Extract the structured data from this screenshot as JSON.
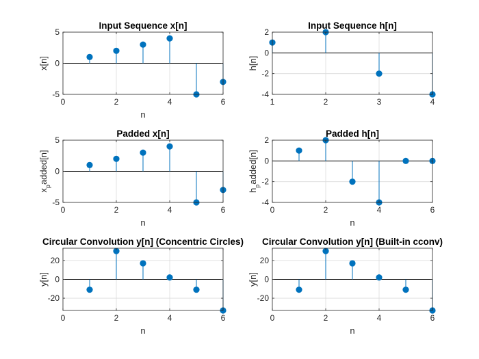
{
  "chart_data": [
    {
      "type": "stem",
      "title": "Input Sequence x[n]",
      "xlabel": "n",
      "ylabel": "x[n]",
      "xlim": [
        0,
        6
      ],
      "ylim": [
        -5,
        5
      ],
      "xticks": [
        0,
        2,
        4,
        6
      ],
      "yticks": [
        -5,
        0,
        5
      ],
      "x": [
        1,
        2,
        3,
        4,
        5,
        6
      ],
      "y": [
        1,
        2,
        3,
        4,
        -5,
        -3
      ],
      "grid": true,
      "color": "#0072BD"
    },
    {
      "type": "stem",
      "title": "Input Sequence h[n]",
      "xlabel": "",
      "ylabel": "h[n]",
      "xlim": [
        1,
        4
      ],
      "ylim": [
        -4,
        2
      ],
      "xticks": [
        1,
        2,
        3,
        4
      ],
      "yticks": [
        -4,
        -2,
        0,
        2
      ],
      "x": [
        1,
        2,
        3,
        4
      ],
      "y": [
        1,
        2,
        -2,
        -4
      ],
      "grid": true,
      "color": "#0072BD"
    },
    {
      "type": "stem",
      "title": "Padded x[n]",
      "xlabel": "n",
      "ylabel": "x_padded[n]",
      "xlim": [
        0,
        6
      ],
      "ylim": [
        -5,
        5
      ],
      "xticks": [
        0,
        2,
        4,
        6
      ],
      "yticks": [
        -5,
        0,
        5
      ],
      "x": [
        1,
        2,
        3,
        4,
        5,
        6
      ],
      "y": [
        1,
        2,
        3,
        4,
        -5,
        -3
      ],
      "grid": true,
      "color": "#0072BD"
    },
    {
      "type": "stem",
      "title": "Padded h[n]",
      "xlabel": "n",
      "ylabel": "h_padded[n]",
      "xlim": [
        0,
        6
      ],
      "ylim": [
        -4,
        2
      ],
      "xticks": [
        0,
        2,
        4,
        6
      ],
      "yticks": [
        -4,
        -2,
        0,
        2
      ],
      "x": [
        1,
        2,
        3,
        4,
        5,
        6
      ],
      "y": [
        1,
        2,
        -2,
        -4,
        0,
        0
      ],
      "grid": true,
      "color": "#0072BD"
    },
    {
      "type": "stem",
      "title": "Circular Convolution y[n] (Concentric Circles)",
      "xlabel": "n",
      "ylabel": "y[n]",
      "xlim": [
        0,
        6
      ],
      "ylim": [
        -33,
        33
      ],
      "xticks": [
        0,
        2,
        4,
        6
      ],
      "yticks": [
        -20,
        0,
        20
      ],
      "x": [
        1,
        2,
        3,
        4,
        5,
        6
      ],
      "y": [
        -11,
        30,
        17,
        2,
        -11,
        -33
      ],
      "grid": true,
      "color": "#0072BD"
    },
    {
      "type": "stem",
      "title": "Circular Convolution y[n] (Built-in cconv)",
      "xlabel": "n",
      "ylabel": "y[n]",
      "xlim": [
        0,
        6
      ],
      "ylim": [
        -33,
        33
      ],
      "xticks": [
        0,
        2,
        4,
        6
      ],
      "yticks": [
        -20,
        0,
        20
      ],
      "x": [
        1,
        2,
        3,
        4,
        5,
        6
      ],
      "y": [
        -11,
        30,
        17,
        2,
        -11,
        -33
      ],
      "grid": true,
      "color": "#0072BD"
    }
  ]
}
